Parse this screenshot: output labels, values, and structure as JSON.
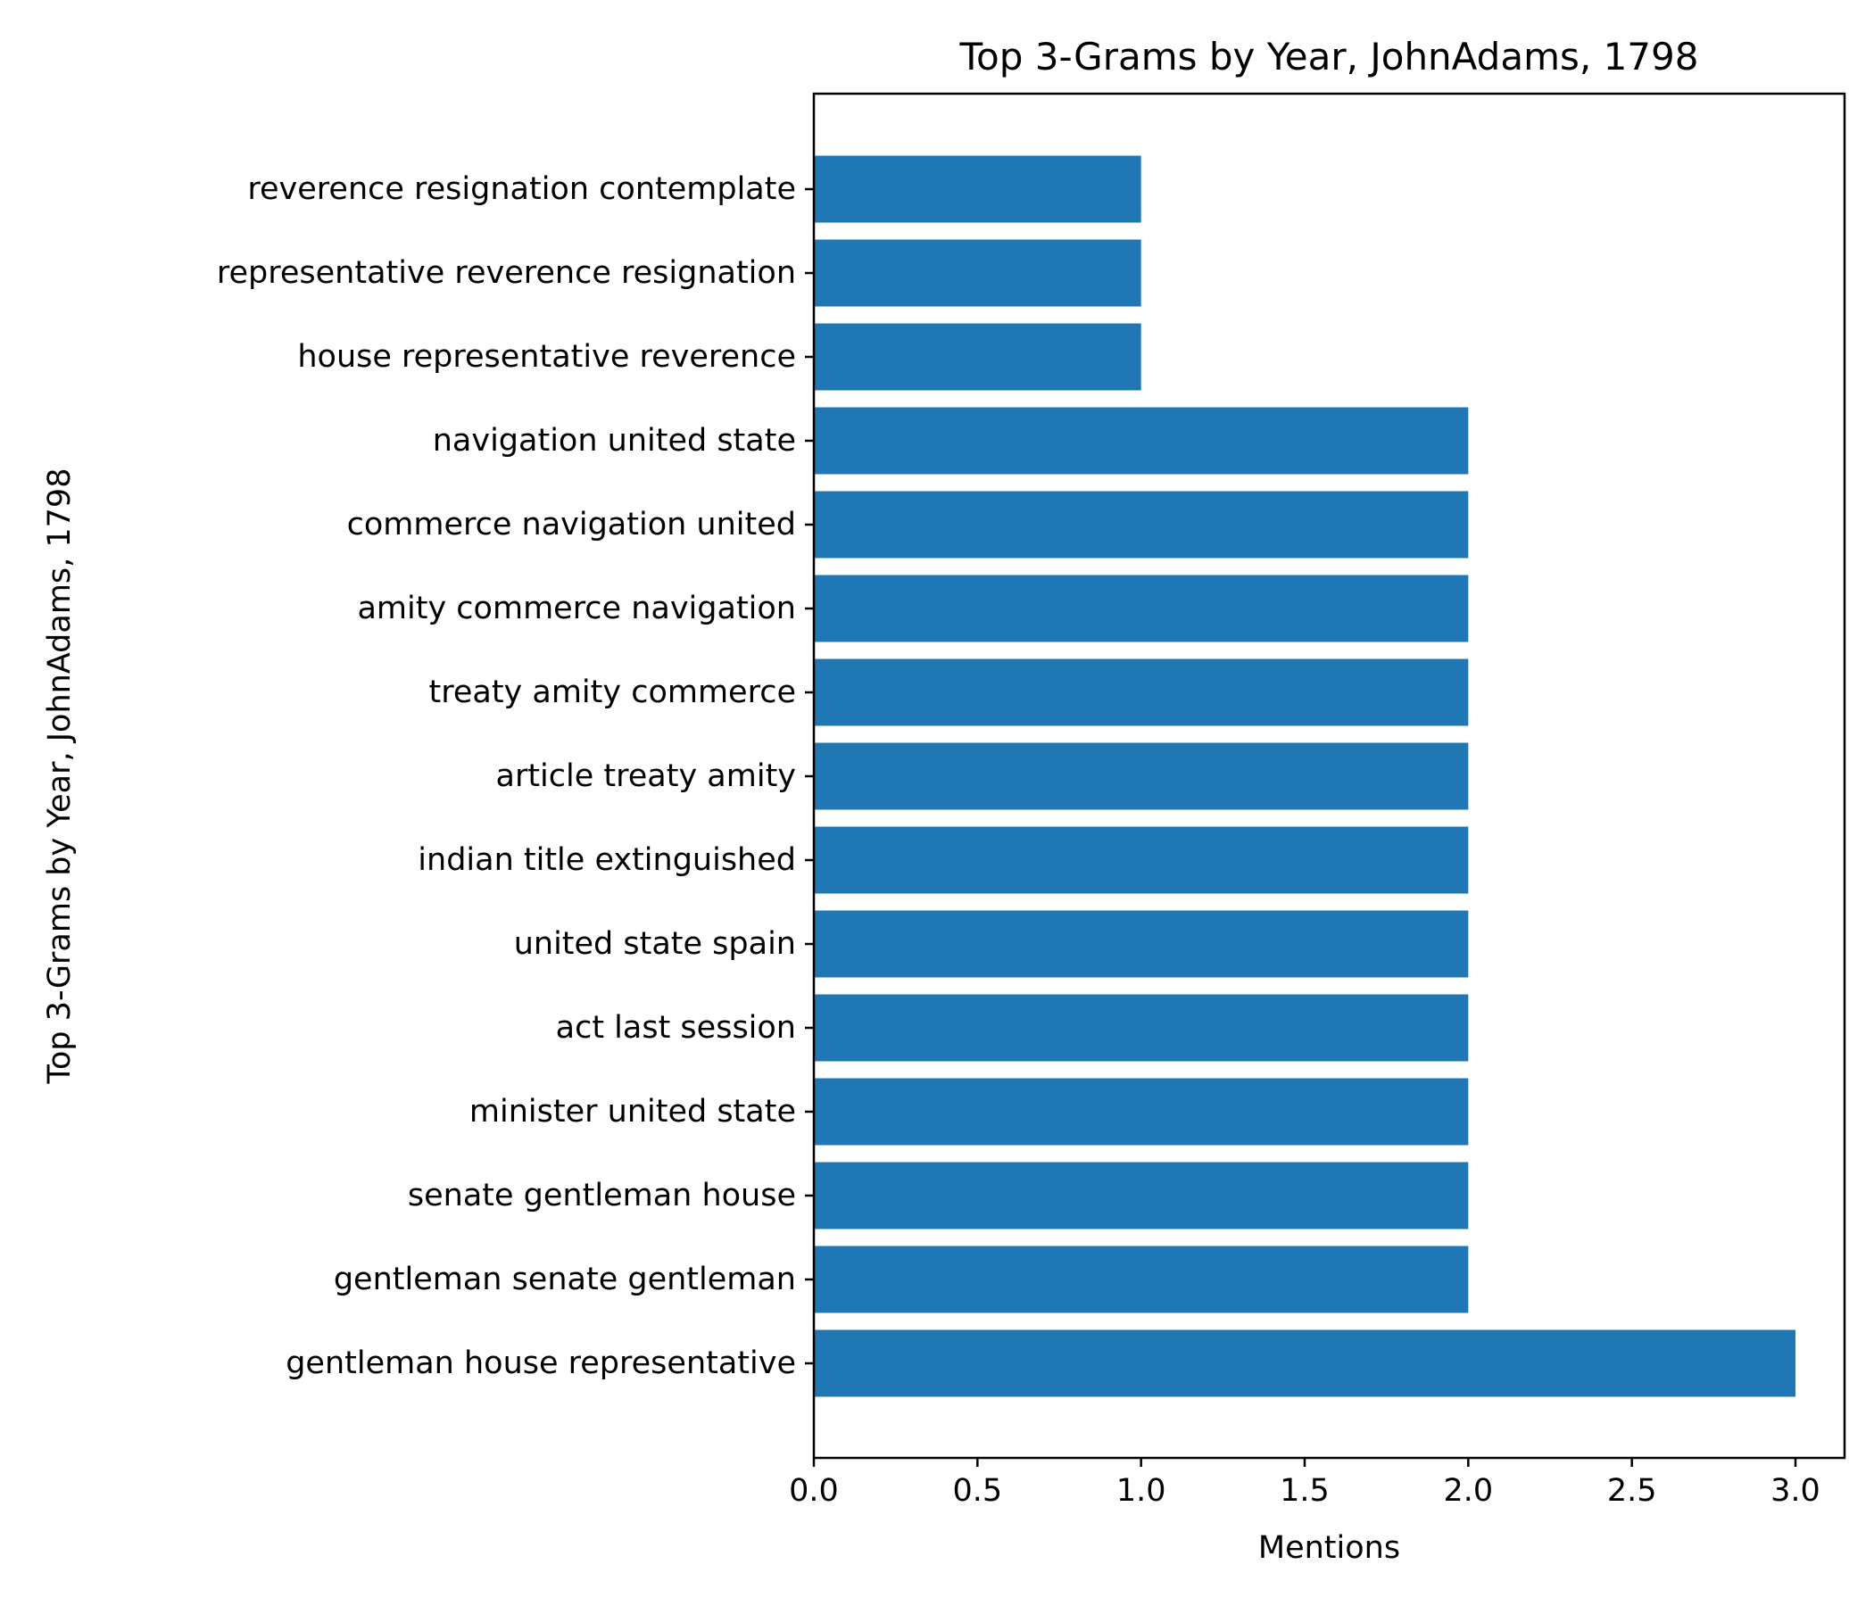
{
  "chart_data": {
    "type": "bar",
    "orientation": "horizontal",
    "title": "Top 3-Grams by Year, JohnAdams, 1798",
    "xlabel": "Mentions",
    "ylabel": "Top 3-Grams by Year, JohnAdams, 1798",
    "xlim": [
      0,
      3.15
    ],
    "x_ticks": [
      "0.0",
      "0.5",
      "1.0",
      "1.5",
      "2.0",
      "2.5",
      "3.0"
    ],
    "x_tick_values": [
      0,
      0.5,
      1.0,
      1.5,
      2.0,
      2.5,
      3.0
    ],
    "grid": false,
    "bar_color": "#1f77b4",
    "categories": [
      "gentleman house representative",
      "gentleman senate gentleman",
      "senate gentleman house",
      "minister united state",
      "act last session",
      "united state spain",
      "indian title extinguished",
      "article treaty amity",
      "treaty amity commerce",
      "amity commerce navigation",
      "commerce navigation united",
      "navigation united state",
      "house representative reverence",
      "representative reverence resignation",
      "reverence resignation contemplate"
    ],
    "values": [
      3,
      2,
      2,
      2,
      2,
      2,
      2,
      2,
      2,
      2,
      2,
      2,
      1,
      1,
      1
    ]
  }
}
